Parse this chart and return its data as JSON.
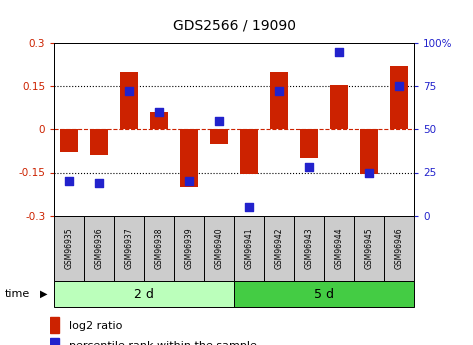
{
  "title": "GDS2566 / 19090",
  "samples": [
    "GSM96935",
    "GSM96936",
    "GSM96937",
    "GSM96938",
    "GSM96939",
    "GSM96940",
    "GSM96941",
    "GSM96942",
    "GSM96943",
    "GSM96944",
    "GSM96945",
    "GSM96946"
  ],
  "log2_ratio": [
    -0.08,
    -0.09,
    0.2,
    0.06,
    -0.2,
    -0.05,
    -0.155,
    0.2,
    -0.1,
    0.155,
    -0.155,
    0.22
  ],
  "pct_rank": [
    20,
    19,
    72,
    60,
    20,
    55,
    5,
    72,
    28,
    95,
    25,
    75
  ],
  "groups": [
    {
      "label": "2 d",
      "start": 0,
      "end": 6,
      "color": "#aaffaa"
    },
    {
      "label": "5 d",
      "start": 6,
      "end": 12,
      "color": "#44dd44"
    }
  ],
  "ylim_left": [
    -0.3,
    0.3
  ],
  "ylim_right": [
    0,
    100
  ],
  "yticks_left": [
    -0.3,
    -0.15,
    0.0,
    0.15,
    0.3
  ],
  "ytick_labels_left": [
    "-0.3",
    "-0.15",
    "0",
    "0.15",
    "0.3"
  ],
  "yticks_right": [
    0,
    25,
    50,
    75,
    100
  ],
  "ytick_labels_right": [
    "0",
    "25",
    "50",
    "75",
    "100%"
  ],
  "bar_color": "#cc2200",
  "dot_color": "#2222cc",
  "bar_width": 0.6,
  "dot_size": 40,
  "hlines": [
    -0.15,
    0.15
  ],
  "zero_color": "#cc2200",
  "hline_color": "black",
  "label_bg": "#cccccc",
  "group1_color": "#bbffbb",
  "group2_color": "#44cc44"
}
